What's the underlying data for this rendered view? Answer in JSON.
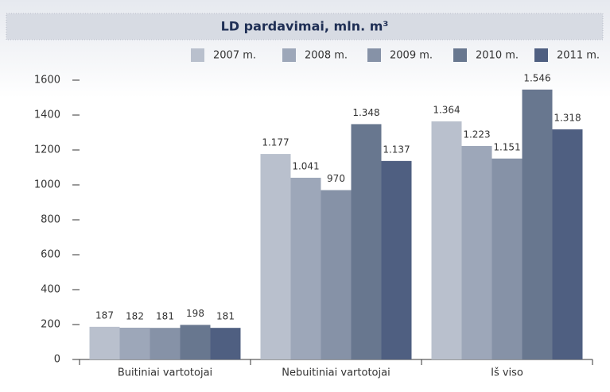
{
  "chart_data": {
    "type": "bar",
    "title": "LD pardavimai, mln. m³",
    "categories": [
      "Buitiniai vartotojai",
      "Nebuitiniai vartotojai",
      "Iš viso"
    ],
    "series": [
      {
        "name": "2007 m.",
        "color": "#b9c0cd",
        "values": [
          187,
          1177,
          1364
        ],
        "value_labels": [
          "187",
          "1.177",
          "1.364"
        ]
      },
      {
        "name": "2008 m.",
        "color": "#9da7b9",
        "values": [
          182,
          1041,
          1223
        ],
        "value_labels": [
          "182",
          "1.041",
          "1.223"
        ]
      },
      {
        "name": "2009 m.",
        "color": "#8692a7",
        "values": [
          181,
          970,
          1151
        ],
        "value_labels": [
          "181",
          "970",
          "1.151"
        ]
      },
      {
        "name": "2010 m.",
        "color": "#68778f",
        "values": [
          198,
          1348,
          1546
        ],
        "value_labels": [
          "198",
          "1.348",
          "1.546"
        ]
      },
      {
        "name": "2011 m.",
        "color": "#4f5f81",
        "values": [
          181,
          1137,
          1318
        ],
        "value_labels": [
          "181",
          "1.137",
          "1.318"
        ]
      }
    ],
    "ylim": [
      0,
      1600
    ],
    "yticks": [
      0,
      200,
      400,
      600,
      800,
      1000,
      1200,
      1400,
      1600
    ],
    "legend": "top-right"
  }
}
